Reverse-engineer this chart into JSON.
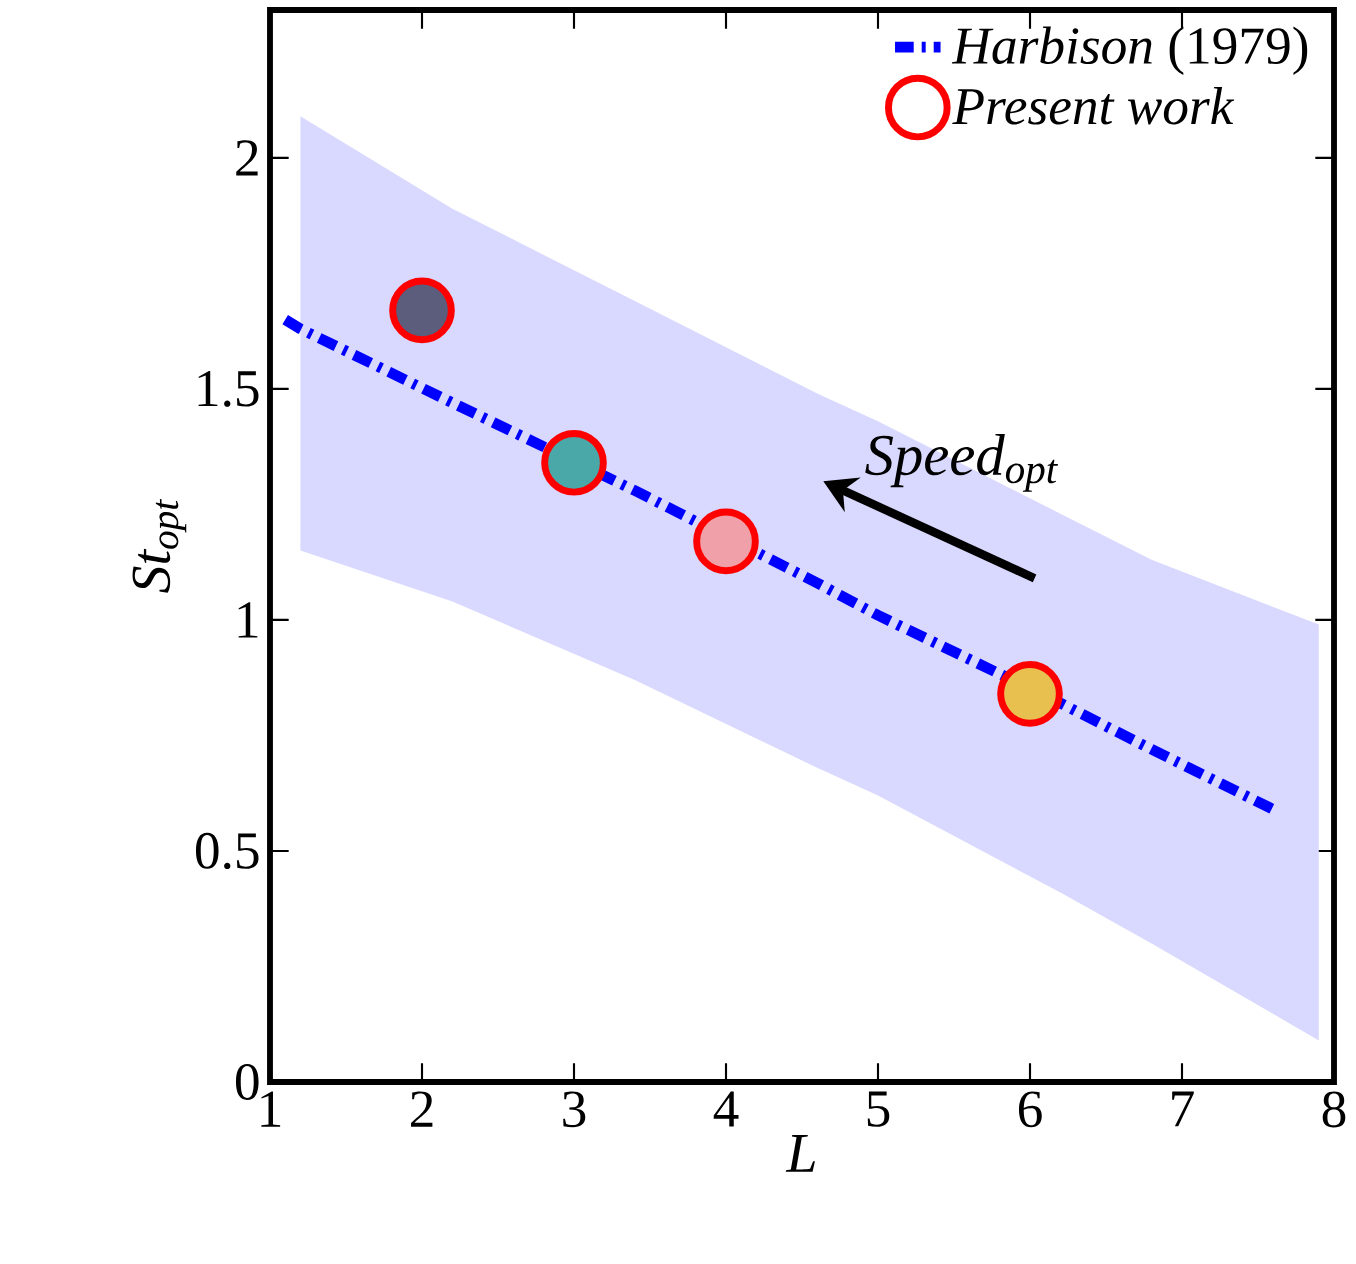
{
  "chart_data": {
    "type": "scatter",
    "xlabel": "L",
    "ylabel": "St$_{opt}$",
    "xlim": [
      1,
      8
    ],
    "ylim": [
      0,
      2.32
    ],
    "xticks": [
      1,
      2,
      3,
      4,
      5,
      6,
      7,
      8
    ],
    "yticks": [
      0,
      0.5,
      1,
      1.5,
      2
    ],
    "legend": "top right",
    "grid": false,
    "annotations": [
      "Speed$_{opt}$"
    ],
    "series": [
      {
        "type": "line",
        "name": "*Harbison* (1979)",
        "color": "#0000ff",
        "line_style": "dashdot",
        "x": [
          1.1,
          1.2,
          2.2,
          3.4,
          4.6,
          5,
          6.2,
          6.8,
          7.6,
          7.9
        ],
        "values": [
          1.65,
          1.63,
          1.47,
          1.28,
          1.08,
          1.01,
          0.82,
          0.72,
          0.59,
          null
        ],
        "lower": [
          null,
          1.15,
          1.04,
          0.87,
          0.68,
          0.62,
          0.41,
          0.3,
          null,
          0.09
        ],
        "upper": [
          null,
          2.09,
          1.89,
          1.69,
          1.49,
          1.43,
          1.23,
          1.13,
          null,
          0.99
        ]
      },
      {
        "name": "Present work",
        "color": "#ff0000",
        "marker": "circle",
        "x": [
          2,
          3,
          4,
          6
        ],
        "values": [
          1.67,
          1.34,
          1.17,
          0.84
        ],
        "colors": [
          "#5c5c7c",
          "#4aa8a8",
          "#f0a0a8",
          "#e8c050"
        ]
      }
    ]
  }
}
